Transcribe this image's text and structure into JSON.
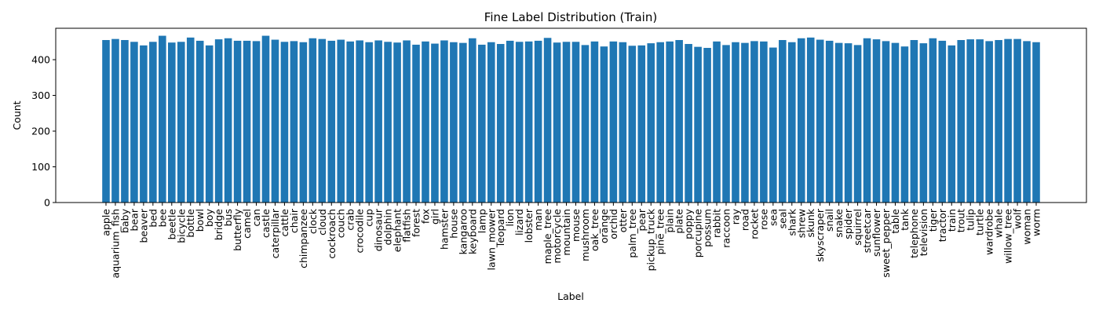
{
  "chart_data": {
    "type": "bar",
    "title": "Fine Label Distribution (Train)",
    "xlabel": "Label",
    "ylabel": "Count",
    "ylim": [
      0,
      488
    ],
    "yticks": [
      0,
      100,
      200,
      300,
      400
    ],
    "grid": false,
    "color": "#1f77b4",
    "categories": [
      "apple",
      "aquarium_fish",
      "baby",
      "bear",
      "beaver",
      "bed",
      "bee",
      "beetle",
      "bicycle",
      "bottle",
      "bowl",
      "boy",
      "bridge",
      "bus",
      "butterfly",
      "camel",
      "can",
      "castle",
      "caterpillar",
      "cattle",
      "chair",
      "chimpanzee",
      "clock",
      "cloud",
      "cockroach",
      "couch",
      "crab",
      "crocodile",
      "cup",
      "dinosaur",
      "dolphin",
      "elephant",
      "flatfish",
      "forest",
      "fox",
      "girl",
      "hamster",
      "house",
      "kangaroo",
      "keyboard",
      "lamp",
      "lawn_mower",
      "leopard",
      "lion",
      "lizard",
      "lobster",
      "man",
      "maple_tree",
      "motorcycle",
      "mountain",
      "mouse",
      "mushroom",
      "oak_tree",
      "orange",
      "orchid",
      "otter",
      "palm_tree",
      "pear",
      "pickup_truck",
      "pine_tree",
      "plain",
      "plate",
      "poppy",
      "porcupine",
      "possum",
      "rabbit",
      "raccoon",
      "ray",
      "road",
      "rocket",
      "rose",
      "sea",
      "seal",
      "shark",
      "shrew",
      "skunk",
      "skyscraper",
      "snail",
      "snake",
      "spider",
      "squirrel",
      "streetcar",
      "sunflower",
      "sweet_pepper",
      "table",
      "tank",
      "telephone",
      "television",
      "tiger",
      "tractor",
      "train",
      "trout",
      "tulip",
      "turtle",
      "wardrobe",
      "whale",
      "willow_tree",
      "wolf",
      "woman",
      "worm"
    ],
    "values": [
      455,
      458,
      455,
      450,
      440,
      450,
      467,
      448,
      450,
      462,
      453,
      440,
      457,
      460,
      453,
      453,
      452,
      467,
      456,
      450,
      452,
      449,
      460,
      458,
      453,
      456,
      451,
      454,
      449,
      454,
      450,
      448,
      454,
      442,
      451,
      445,
      454,
      449,
      447,
      460,
      442,
      449,
      444,
      453,
      450,
      451,
      453,
      461,
      448,
      450,
      450,
      441,
      451,
      437,
      451,
      449,
      439,
      440,
      446,
      449,
      451,
      455,
      444,
      436,
      433,
      451,
      441,
      449,
      447,
      452,
      451,
      434,
      455,
      449,
      460,
      462,
      456,
      453,
      447,
      446,
      441,
      460,
      457,
      452,
      447,
      437,
      455,
      446,
      460,
      453,
      440,
      455,
      457,
      457,
      452,
      455,
      458,
      458,
      452,
      449
    ]
  }
}
